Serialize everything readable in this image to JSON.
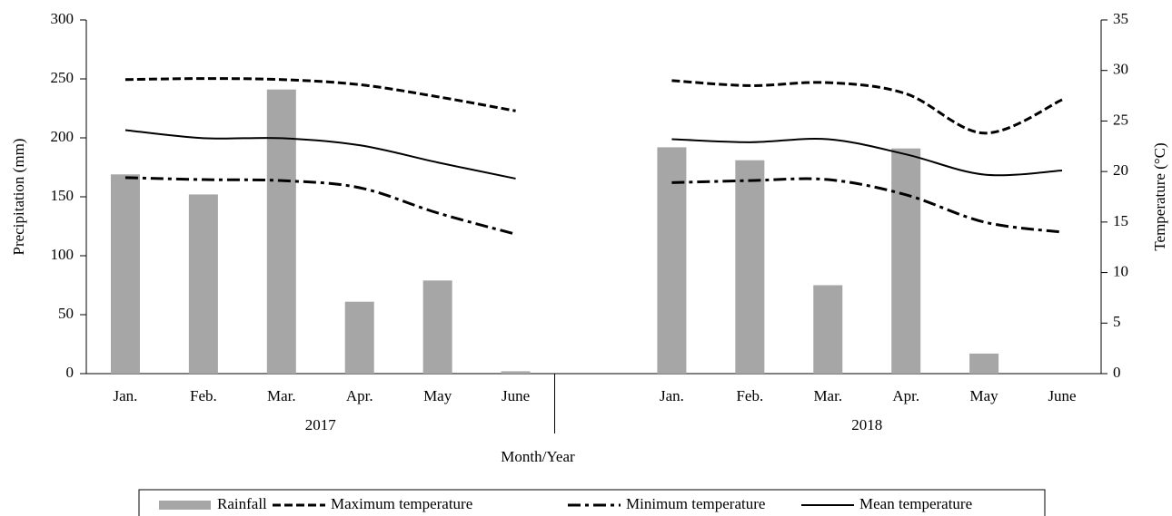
{
  "chart_data": {
    "type": "bar",
    "categories": [
      "Jan.",
      "Feb.",
      "Mar.",
      "Apr.",
      "May",
      "June",
      null,
      "Jan.",
      "Feb.",
      "Mar.",
      "Apr.",
      "May",
      "June"
    ],
    "groups": [
      "2017",
      "2018"
    ],
    "x_label": "Month/Year",
    "y_label": "Precipitation (mm)",
    "y2_label": "Temperature (°C)",
    "ylim": [
      0,
      300
    ],
    "yticks": [
      0,
      50,
      100,
      150,
      200,
      250,
      300
    ],
    "y2lim": [
      0,
      35
    ],
    "y2ticks": [
      0,
      5,
      10,
      15,
      20,
      25,
      30,
      35
    ],
    "legend": "bottom",
    "series": [
      {
        "name": "Rainfall",
        "type": "bar",
        "color": "#a6a6a6",
        "values": [
          169,
          152,
          241,
          61,
          79,
          2,
          null,
          192,
          181,
          75,
          191,
          17,
          0
        ]
      },
      {
        "name": "Maximum temperature",
        "type": "line",
        "axis": "y2",
        "color": "#000000",
        "line_style": "dashed",
        "values": [
          29.1,
          29.2,
          29.1,
          28.6,
          27.4,
          26.0,
          null,
          29.0,
          28.5,
          28.8,
          27.7,
          23.8,
          27.1
        ]
      },
      {
        "name": "Minimum temperature",
        "type": "line",
        "axis": "y2",
        "color": "#000000",
        "line_style": "dash-dot",
        "values": [
          19.4,
          19.2,
          19.1,
          18.4,
          15.9,
          13.8,
          null,
          18.9,
          19.1,
          19.2,
          17.7,
          15.0,
          14.0
        ]
      },
      {
        "name": "Mean temperature",
        "type": "line",
        "axis": "y2",
        "color": "#000000",
        "line_style": "solid",
        "values": [
          24.1,
          23.3,
          23.3,
          22.6,
          20.9,
          19.3,
          null,
          23.2,
          22.9,
          23.2,
          21.7,
          19.7,
          20.1
        ]
      }
    ]
  }
}
